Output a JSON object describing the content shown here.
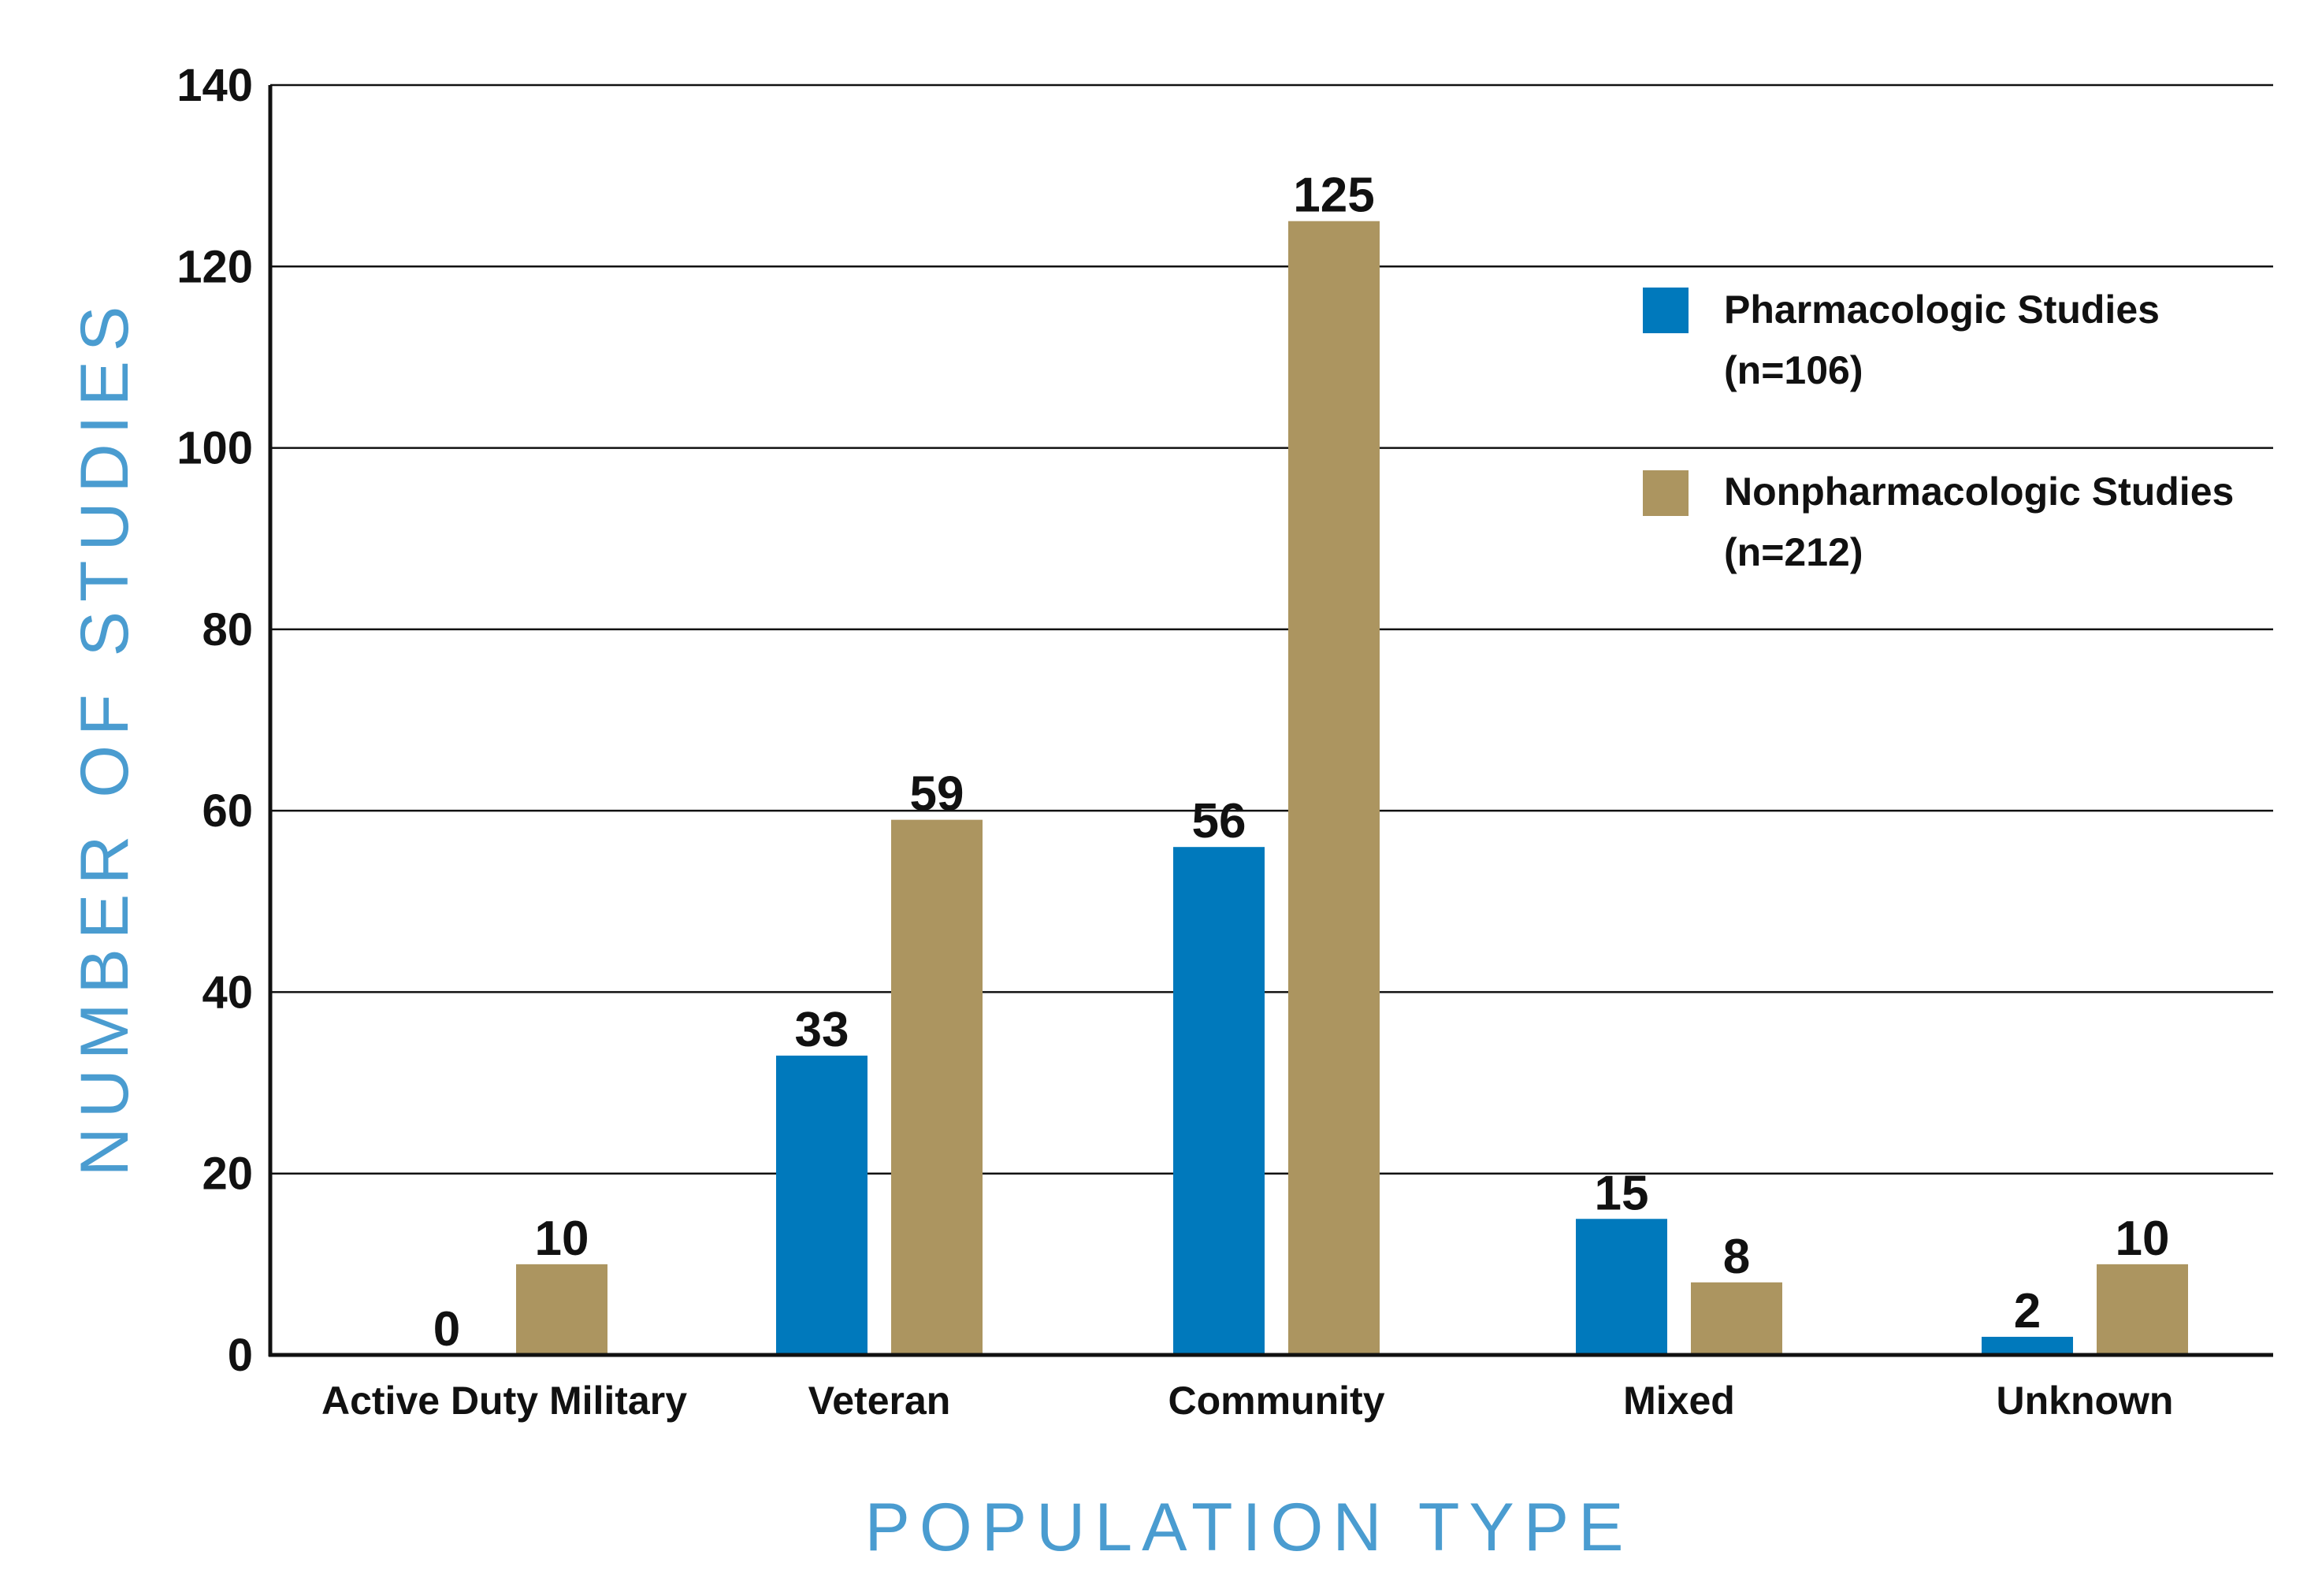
{
  "colors": {
    "pharmacologic": "#0079BC",
    "nonpharmacologic": "#AC9560",
    "axis_title": "#4A9CD0",
    "grid": "#111111"
  },
  "chart_data": {
    "type": "bar",
    "title": "",
    "xlabel": "POPULATION TYPE",
    "ylabel": "NUMBER OF STUDIES",
    "ylim": [
      0,
      140
    ],
    "yticks": [
      0,
      20,
      40,
      60,
      80,
      100,
      120,
      140
    ],
    "grid": true,
    "legend_position": "top-right",
    "categories": [
      "Active Duty Military",
      "Veteran",
      "Community",
      "Mixed",
      "Unknown"
    ],
    "series": [
      {
        "name": "Pharmacologic Studies",
        "note": "(n=106)",
        "color": "#0079BC",
        "values": [
          0,
          33,
          56,
          15,
          2
        ]
      },
      {
        "name": "Nonpharmacologic Studies",
        "note": "(n=212)",
        "color": "#AC9560",
        "values": [
          10,
          59,
          125,
          8,
          10
        ]
      }
    ]
  }
}
